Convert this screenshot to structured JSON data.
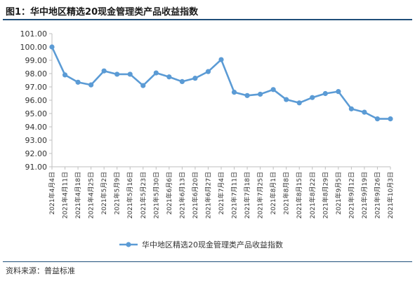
{
  "header": {
    "title": "图1：华中地区精选20现金管理类产品收益指数"
  },
  "footer": {
    "source": "资料来源：普益标准"
  },
  "colors": {
    "series": "#5b9bd5",
    "axis": "#bfbfbf",
    "rule": "#1f4e79"
  },
  "chart_data": {
    "type": "line",
    "title": "",
    "xlabel": "",
    "ylabel": "",
    "ylim": [
      91.0,
      101.0
    ],
    "yticks": [
      "91.00",
      "92.00",
      "93.00",
      "94.00",
      "95.00",
      "96.00",
      "97.00",
      "98.00",
      "99.00",
      "100.00",
      "101.00"
    ],
    "grid": false,
    "legend_position": "bottom",
    "x": [
      "2021年4月4日",
      "2021年4月11日",
      "2021年4月18日",
      "2021年4月25日",
      "2021年5月2日",
      "2021年5月9日",
      "2021年5月16日",
      "2021年5月23日",
      "2021年5月30日",
      "2021年6月6日",
      "2021年6月13日",
      "2021年6月20日",
      "2021年6月27日",
      "2021年7月4日",
      "2021年7月11日",
      "2021年7月18日",
      "2021年7月25日",
      "2021年8月1日",
      "2021年8月8日",
      "2021年8月15日",
      "2021年8月22日",
      "2021年8月29日",
      "2021年9月5日",
      "2021年9月12日",
      "2021年9月19日",
      "2021年9月26日",
      "2021年10月3日"
    ],
    "series": [
      {
        "name": "华中地区精选20现金管理类产品收益指数",
        "values": [
          100.0,
          97.9,
          97.35,
          97.15,
          98.2,
          97.95,
          97.95,
          97.1,
          98.05,
          97.75,
          97.4,
          97.65,
          98.15,
          99.05,
          96.6,
          96.35,
          96.45,
          96.8,
          96.05,
          95.8,
          96.2,
          96.5,
          96.65,
          95.35,
          95.1,
          94.6,
          94.6
        ]
      }
    ]
  }
}
